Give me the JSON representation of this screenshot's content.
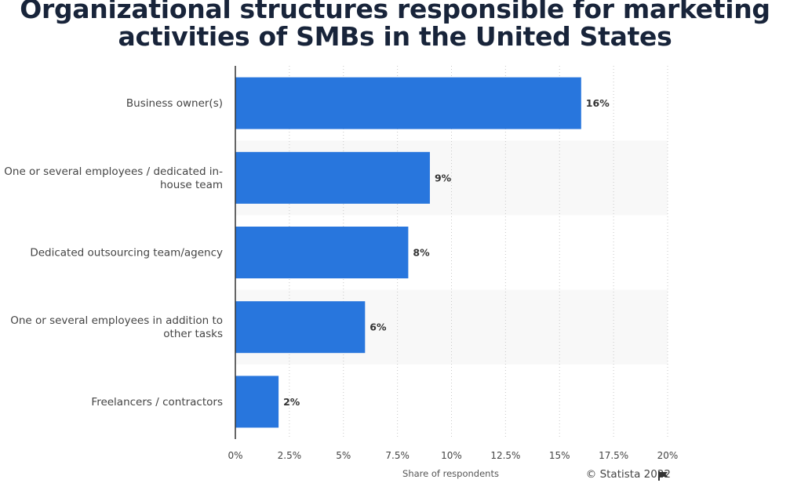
{
  "title": "Organizational structures responsible for marketing activities of SMBs in the United States",
  "credit": "© Statista 2022",
  "chart_data": {
    "type": "bar",
    "orientation": "horizontal",
    "title": "Organizational structures responsible for marketing activities of SMBs in the United States",
    "categories": [
      [
        "Business owner(s)"
      ],
      [
        "One or several employees / dedicated in-",
        "house team"
      ],
      [
        "Dedicated outsourcing team/agency"
      ],
      [
        "One or several employees in addition to",
        "other tasks"
      ],
      [
        "Freelancers / contractors"
      ]
    ],
    "values": [
      16,
      9,
      8,
      6,
      2
    ],
    "value_labels": [
      "16%",
      "9%",
      "8%",
      "6%",
      "2%"
    ],
    "xlabel": "Share of respondents",
    "ylabel": "",
    "xlim": [
      0,
      20
    ],
    "ticks": [
      0,
      2.5,
      5,
      7.5,
      10,
      12.5,
      15,
      17.5,
      20
    ],
    "tick_labels": [
      "0%",
      "2.5%",
      "5%",
      "7.5%",
      "10%",
      "12.5%",
      "15%",
      "17.5%",
      "20%"
    ],
    "grid": "vertical dotted",
    "bar_color": "#2876dd",
    "band_color": "#f8f8f8"
  }
}
